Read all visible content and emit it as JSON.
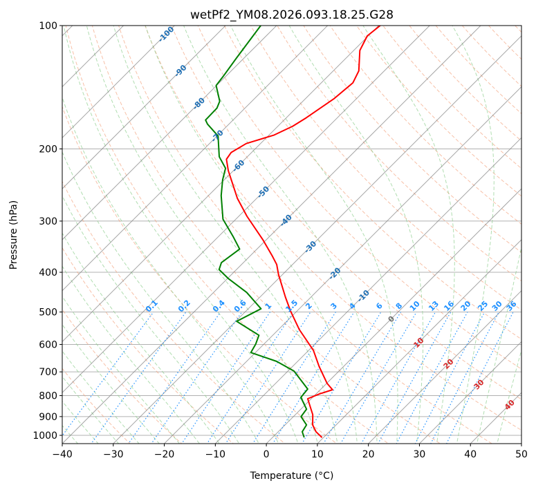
{
  "chart_data": {
    "type": "line",
    "subtype": "skew-t log-p",
    "title": "wetPf2_YM08.2026.093.18.25.G28",
    "xlabel": "Temperature (°C)",
    "ylabel": "Pressure (hPa)",
    "xlim": [
      -40,
      50
    ],
    "ylim": [
      1048,
      100
    ],
    "x_ticks": [
      -40,
      -30,
      -20,
      -10,
      0,
      10,
      20,
      30,
      40,
      50
    ],
    "y_ticks": [
      1000,
      900,
      800,
      700,
      600,
      500,
      400,
      300,
      200,
      100
    ],
    "grid": true,
    "series": [
      {
        "name": "Temperature",
        "color": "#ff0000",
        "points": [
          [
            1012,
            9.7
          ],
          [
            980,
            7.4
          ],
          [
            943,
            5.4
          ],
          [
            890,
            3.4
          ],
          [
            856,
            1.6
          ],
          [
            814,
            -0.7
          ],
          [
            792,
            0.7
          ],
          [
            774,
            2.4
          ],
          [
            747,
            0.1
          ],
          [
            679,
            -4.8
          ],
          [
            620,
            -9.1
          ],
          [
            552,
            -15.9
          ],
          [
            497,
            -21.3
          ],
          [
            460,
            -25.0
          ],
          [
            405,
            -30.8
          ],
          [
            383,
            -33.1
          ],
          [
            364,
            -35.8
          ],
          [
            333,
            -40.7
          ],
          [
            292,
            -48.4
          ],
          [
            264,
            -53.8
          ],
          [
            226,
            -61.0
          ],
          [
            212,
            -63.6
          ],
          [
            204,
            -64.0
          ],
          [
            194,
            -62.8
          ],
          [
            185,
            -59.0
          ],
          [
            176,
            -57.1
          ],
          [
            168,
            -56.1
          ],
          [
            151,
            -54.4
          ],
          [
            138,
            -53.8
          ],
          [
            129,
            -55.0
          ],
          [
            115,
            -58.8
          ],
          [
            106,
            -60.2
          ],
          [
            100,
            -59.7
          ]
        ]
      },
      {
        "name": "Dewpoint",
        "color": "#008000",
        "points": [
          [
            1012,
            6.2
          ],
          [
            980,
            4.7
          ],
          [
            943,
            4.2
          ],
          [
            900,
            1.5
          ],
          [
            863,
            1.1
          ],
          [
            808,
            -2.3
          ],
          [
            771,
            -2.6
          ],
          [
            697,
            -8.8
          ],
          [
            660,
            -14.1
          ],
          [
            628,
            -20.9
          ],
          [
            599,
            -21.6
          ],
          [
            570,
            -22.7
          ],
          [
            527,
            -29.8
          ],
          [
            491,
            -27.5
          ],
          [
            448,
            -33.5
          ],
          [
            414,
            -39.9
          ],
          [
            394,
            -43.4
          ],
          [
            379,
            -44.3
          ],
          [
            351,
            -43.4
          ],
          [
            328,
            -47.0
          ],
          [
            297,
            -52.5
          ],
          [
            260,
            -57.5
          ],
          [
            238,
            -60.3
          ],
          [
            223,
            -62.0
          ],
          [
            209,
            -65.5
          ],
          [
            186,
            -69.8
          ],
          [
            174,
            -74.2
          ],
          [
            170,
            -75.4
          ],
          [
            159,
            -75.5
          ],
          [
            153,
            -76.3
          ],
          [
            140,
            -80.1
          ],
          [
            133,
            -80.5
          ],
          [
            120,
            -81.5
          ],
          [
            100,
            -83.1
          ]
        ]
      }
    ],
    "isotherm_labels": [
      "-100",
      "-90",
      "-80",
      "-70",
      "-60",
      "-50",
      "-40",
      "-30",
      "-20",
      "-10",
      "0",
      "10",
      "20",
      "30",
      "40"
    ],
    "mixing_ratio_labels": [
      "0.1",
      "0.2",
      "0.4",
      "0.6",
      "1",
      "1.5",
      "2",
      "3",
      "4",
      "6",
      "8",
      "10",
      "13",
      "16",
      "20",
      "25",
      "30",
      "36"
    ],
    "colors": {
      "isotherm": "#808080",
      "dry_adiabat": "#f4a582",
      "moist_adiabat": "#8fcf8f",
      "mixing_ratio": "#1e90ff",
      "isotherm_label_negative": "#1f6fb4",
      "isotherm_label_zero": "#707070",
      "isotherm_label_positive": "#d62728"
    }
  }
}
